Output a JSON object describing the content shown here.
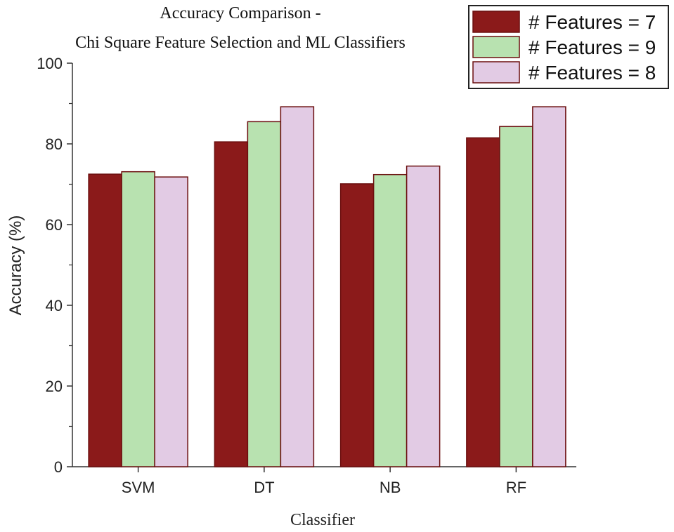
{
  "chart_data": {
    "type": "bar",
    "title_lines": [
      "Accuracy Comparison -",
      "Chi Square Feature Selection and ML Classifiers"
    ],
    "xlabel": "Classifier",
    "ylabel": "Accuracy (%)",
    "categories": [
      "SVM",
      "DT",
      "NB",
      "RF"
    ],
    "series": [
      {
        "name": "# Features = 7",
        "color": "#8b1a1a",
        "values": [
          72.5,
          80.5,
          70.1,
          81.5
        ]
      },
      {
        "name": "# Features = 9",
        "color": "#b8e2b0",
        "values": [
          73.1,
          85.5,
          72.4,
          84.3
        ]
      },
      {
        "name": "# Features = 8",
        "color": "#e2cbe4",
        "values": [
          71.8,
          89.2,
          74.5,
          89.2
        ]
      }
    ],
    "ylim": [
      0,
      100
    ],
    "yticks": [
      0,
      20,
      40,
      60,
      80,
      100
    ],
    "grid": false,
    "legend_position": "top-right",
    "bar_outline_color": "#6b0f0f"
  }
}
